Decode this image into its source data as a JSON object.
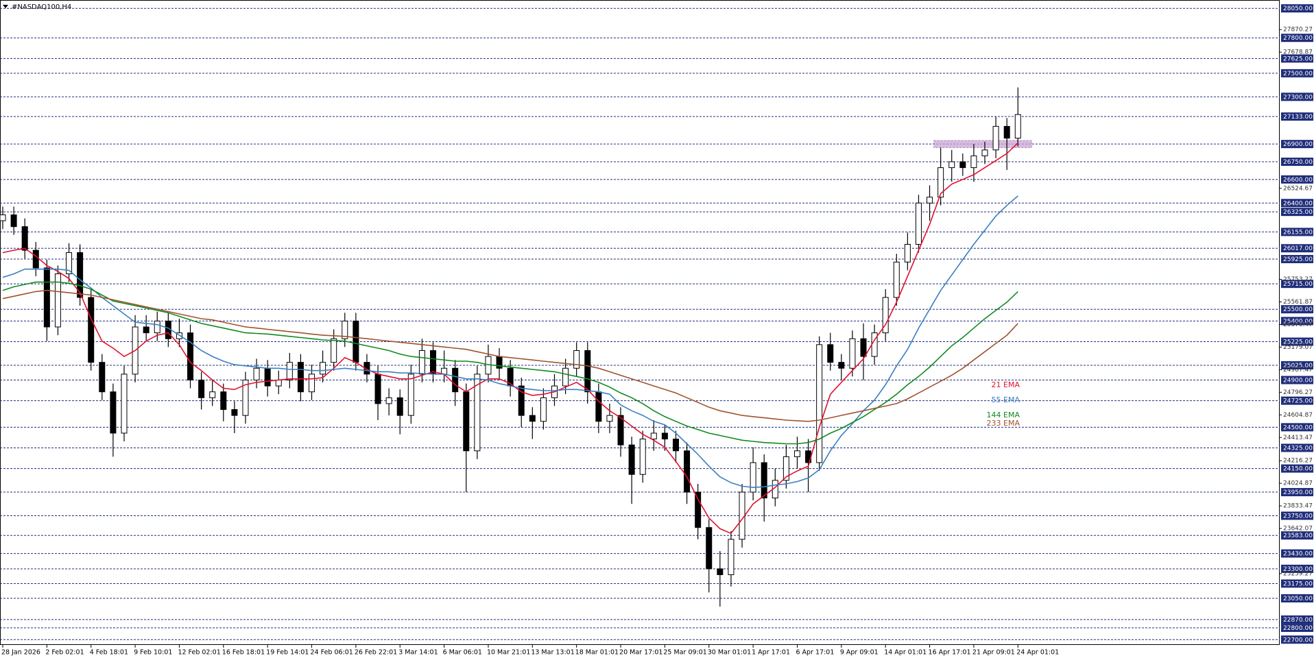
{
  "chart_data": {
    "type": "candlestick",
    "title": "#NASDAQ100,H4",
    "categories": [
      "28 Jan 2026",
      null,
      null,
      null,
      "2 Feb 02:01",
      null,
      null,
      null,
      "4 Feb 18:01",
      null,
      null,
      null,
      "9 Feb 10:01",
      null,
      null,
      null,
      "12 Feb 02:01",
      null,
      null,
      null,
      "16 Feb 18:01",
      null,
      null,
      null,
      "19 Feb 14:01",
      null,
      null,
      null,
      "24 Feb 06:01",
      null,
      null,
      null,
      "26 Feb 22:01",
      null,
      null,
      null,
      "3 Mar 14:01",
      null,
      null,
      null,
      "6 Mar 06:01",
      null,
      null,
      null,
      "10 Mar 21:01",
      null,
      null,
      null,
      "13 Mar 13:01",
      null,
      null,
      null,
      "18 Mar 01:01",
      null,
      null,
      null,
      "20 Mar 17:01",
      null,
      null,
      null,
      "25 Mar 09:01",
      null,
      null,
      null,
      "30 Mar 01:01",
      null,
      null,
      null,
      "1 Apr 17:01",
      null,
      null,
      null,
      "6 Apr 17:01",
      null,
      null,
      null,
      "9 Apr 09:01",
      null,
      null,
      null,
      "14 Apr 01:01",
      null,
      null,
      null,
      "16 Apr 17:01",
      null,
      null,
      null,
      "21 Apr 09:01",
      null,
      null,
      null,
      "24 Apr 01:01"
    ],
    "candles": [
      [
        26250,
        26370,
        26180,
        26300
      ],
      [
        26300,
        26370,
        26130,
        26200
      ],
      [
        26200,
        26270,
        25930,
        26000
      ],
      [
        26000,
        26070,
        25780,
        25850
      ],
      [
        25850,
        25920,
        25230,
        25350
      ],
      [
        25350,
        25870,
        25280,
        25800
      ],
      [
        25800,
        26060,
        25730,
        25980
      ],
      [
        25980,
        26050,
        25530,
        25600
      ],
      [
        25600,
        25670,
        24980,
        25050
      ],
      [
        25050,
        25120,
        24730,
        24800
      ],
      [
        24800,
        24870,
        24250,
        24450
      ],
      [
        24450,
        25020,
        24380,
        24950
      ],
      [
        24950,
        25450,
        24880,
        25350
      ],
      [
        25350,
        25450,
        25230,
        25300
      ],
      [
        25300,
        25480,
        25230,
        25400
      ],
      [
        25400,
        25470,
        25180,
        25250
      ],
      [
        25250,
        25420,
        25180,
        25300
      ],
      [
        25300,
        25370,
        24830,
        24900
      ],
      [
        24900,
        24970,
        24650,
        24750
      ],
      [
        24750,
        24900,
        24680,
        24800
      ],
      [
        24800,
        24870,
        24550,
        24650
      ],
      [
        24650,
        24720,
        24450,
        24600
      ],
      [
        24600,
        24970,
        24530,
        24900
      ],
      [
        24900,
        25080,
        24830,
        25000
      ],
      [
        25000,
        25070,
        24760,
        24850
      ],
      [
        24850,
        24980,
        24780,
        24900
      ],
      [
        24900,
        25130,
        24830,
        25050
      ],
      [
        25050,
        25120,
        24720,
        24800
      ],
      [
        24800,
        25030,
        24730,
        24950
      ],
      [
        24950,
        25150,
        24880,
        25050
      ],
      [
        25050,
        25330,
        24980,
        25250
      ],
      [
        25250,
        25470,
        25180,
        25400
      ],
      [
        25400,
        25470,
        24980,
        25050
      ],
      [
        25050,
        25120,
        24880,
        24950
      ],
      [
        24950,
        25020,
        24560,
        24700
      ],
      [
        24700,
        24830,
        24600,
        24750
      ],
      [
        24750,
        24820,
        24440,
        24600
      ],
      [
        24600,
        25030,
        24530,
        24950
      ],
      [
        24950,
        25250,
        24880,
        25150
      ],
      [
        25150,
        25220,
        24880,
        24950
      ],
      [
        24950,
        25150,
        24880,
        25000
      ],
      [
        25000,
        25070,
        24680,
        24800
      ],
      [
        24800,
        24870,
        23950,
        24300
      ],
      [
        24300,
        25020,
        24230,
        24950
      ],
      [
        24950,
        25200,
        24880,
        25100
      ],
      [
        25100,
        25170,
        24900,
        25000
      ],
      [
        25000,
        25070,
        24760,
        24850
      ],
      [
        24850,
        24920,
        24500,
        24600
      ],
      [
        24600,
        24670,
        24400,
        24550
      ],
      [
        24550,
        24830,
        24480,
        24750
      ],
      [
        24750,
        24950,
        24680,
        24850
      ],
      [
        24850,
        25080,
        24780,
        25000
      ],
      [
        25000,
        25220,
        24930,
        25150
      ],
      [
        25150,
        25220,
        24700,
        24800
      ],
      [
        24800,
        24870,
        24450,
        24550
      ],
      [
        24550,
        24700,
        24450,
        24600
      ],
      [
        24600,
        24670,
        24250,
        24350
      ],
      [
        24350,
        24420,
        23850,
        24100
      ],
      [
        24100,
        24470,
        24030,
        24400
      ],
      [
        24400,
        24560,
        24300,
        24450
      ],
      [
        24450,
        24520,
        24300,
        24400
      ],
      [
        24400,
        24470,
        24200,
        24300
      ],
      [
        24300,
        24370,
        23850,
        23950
      ],
      [
        23950,
        24020,
        23550,
        23650
      ],
      [
        23650,
        23720,
        23100,
        23300
      ],
      [
        23300,
        23450,
        22980,
        23250
      ],
      [
        23250,
        23620,
        23150,
        23550
      ],
      [
        23550,
        24020,
        23480,
        23950
      ],
      [
        23950,
        24330,
        23880,
        24200
      ],
      [
        24200,
        24270,
        23700,
        23900
      ],
      [
        23900,
        24150,
        23830,
        24050
      ],
      [
        24050,
        24350,
        23980,
        24250
      ],
      [
        24250,
        24420,
        24150,
        24300
      ],
      [
        24300,
        24400,
        23950,
        24200
      ],
      [
        24200,
        25270,
        24130,
        25200
      ],
      [
        25200,
        25300,
        24980,
        25050
      ],
      [
        25050,
        25120,
        24900,
        25000
      ],
      [
        25000,
        25320,
        24930,
        25250
      ],
      [
        25250,
        25380,
        24900,
        25100
      ],
      [
        25100,
        25370,
        25030,
        25300
      ],
      [
        25300,
        25670,
        25230,
        25600
      ],
      [
        25600,
        25970,
        25530,
        25900
      ],
      [
        25900,
        26150,
        25830,
        26050
      ],
      [
        26050,
        26470,
        25980,
        26400
      ],
      [
        26400,
        26550,
        26250,
        26450
      ],
      [
        26450,
        26870,
        26380,
        26700
      ],
      [
        26700,
        26850,
        26580,
        26750
      ],
      [
        26750,
        26820,
        26630,
        26700
      ],
      [
        26700,
        26900,
        26580,
        26800
      ],
      [
        26800,
        26920,
        26730,
        26850
      ],
      [
        26850,
        27130,
        26780,
        27050
      ],
      [
        27050,
        27120,
        26680,
        26950
      ],
      [
        26950,
        27380,
        26880,
        27150
      ]
    ],
    "up_color": "#ffffff",
    "down_color": "#000000",
    "wick_color": "#000000",
    "series": [
      {
        "name": "21 EMA",
        "color": "#e0102f",
        "values": [
          25980,
          26000,
          26015,
          25950,
          25870,
          25820,
          25760,
          25640,
          25420,
          25230,
          25170,
          25100,
          25150,
          25230,
          25280,
          25300,
          25200,
          25050,
          24980,
          24900,
          24830,
          24820,
          24860,
          24880,
          24890,
          24900,
          24910,
          24910,
          24910,
          24920,
          25000,
          25090,
          25050,
          24990,
          24950,
          24930,
          24910,
          24910,
          24940,
          24970,
          24950,
          24860,
          24800,
          24860,
          24910,
          24910,
          24870,
          24800,
          24770,
          24780,
          24800,
          24840,
          24880,
          24820,
          24720,
          24640,
          24580,
          24510,
          24440,
          24390,
          24330,
          24210,
          24080,
          23890,
          23730,
          23640,
          23600,
          23720,
          23850,
          23920,
          23990,
          24080,
          24130,
          24170,
          24500,
          24780,
          24880,
          24980,
          25080,
          25240,
          25370,
          25560,
          25780,
          26000,
          26220,
          26480,
          26560,
          26600,
          26640,
          26700,
          26760,
          26820,
          26910
        ]
      },
      {
        "name": "55 EMA",
        "color": "#3a7fc0",
        "values": [
          25770,
          25800,
          25840,
          25840,
          25840,
          25840,
          25830,
          25750,
          25680,
          25600,
          25530,
          25460,
          25390,
          25380,
          25370,
          25340,
          25280,
          25220,
          25150,
          25100,
          25060,
          25030,
          25020,
          25010,
          25000,
          25000,
          24990,
          24990,
          24980,
          24980,
          24990,
          25000,
          24990,
          24980,
          24970,
          24970,
          24960,
          24960,
          24955,
          24950,
          24950,
          24930,
          24910,
          24910,
          24900,
          24870,
          24850,
          24830,
          24820,
          24810,
          24810,
          24820,
          24820,
          24810,
          24800,
          24780,
          24690,
          24640,
          24600,
          24550,
          24520,
          24450,
          24360,
          24270,
          24170,
          24080,
          24030,
          24000,
          23990,
          23995,
          24010,
          24020,
          24040,
          24070,
          24140,
          24300,
          24430,
          24530,
          24640,
          24730,
          24860,
          25020,
          25160,
          25340,
          25500,
          25660,
          25790,
          25920,
          26050,
          26170,
          26290,
          26380,
          26460
        ]
      },
      {
        "name": "144 EMA",
        "color": "#0f8a1f",
        "values": [
          25660,
          25690,
          25710,
          25730,
          25730,
          25730,
          25720,
          25700,
          25670,
          25620,
          25570,
          25550,
          25530,
          25510,
          25490,
          25470,
          25440,
          25410,
          25380,
          25360,
          25340,
          25320,
          25300,
          25295,
          25290,
          25280,
          25270,
          25260,
          25250,
          25240,
          25235,
          25230,
          25210,
          25190,
          25170,
          25150,
          25120,
          25100,
          25090,
          25080,
          25070,
          25060,
          25060,
          25050,
          25030,
          25020,
          25010,
          25000,
          24990,
          24980,
          24970,
          24950,
          24930,
          24910,
          24880,
          24840,
          24790,
          24750,
          24700,
          24640,
          24590,
          24550,
          24510,
          24480,
          24450,
          24430,
          24410,
          24390,
          24380,
          24370,
          24365,
          24360,
          24360,
          24370,
          24400,
          24450,
          24490,
          24540,
          24590,
          24650,
          24710,
          24780,
          24860,
          24930,
          25010,
          25100,
          25190,
          25260,
          25340,
          25420,
          25490,
          25560,
          25650
        ]
      },
      {
        "name": "233 EMA",
        "color": "#a0522d",
        "values": [
          25590,
          25610,
          25630,
          25650,
          25660,
          25650,
          25640,
          25630,
          25620,
          25600,
          25580,
          25560,
          25540,
          25520,
          25500,
          25480,
          25460,
          25440,
          25420,
          25410,
          25390,
          25370,
          25350,
          25340,
          25330,
          25320,
          25310,
          25300,
          25290,
          25280,
          25275,
          25270,
          25260,
          25250,
          25240,
          25230,
          25220,
          25210,
          25200,
          25190,
          25180,
          25170,
          25160,
          25140,
          25120,
          25100,
          25090,
          25080,
          25070,
          25060,
          25050,
          25040,
          25030,
          25020,
          25000,
          24970,
          24940,
          24910,
          24880,
          24850,
          24820,
          24790,
          24750,
          24710,
          24670,
          24640,
          24620,
          24600,
          24590,
          24580,
          24570,
          24560,
          24555,
          24550,
          24560,
          24580,
          24600,
          24620,
          24640,
          24660,
          24680,
          24700,
          24740,
          24790,
          24840,
          24890,
          24940,
          25000,
          25070,
          25140,
          25210,
          25280,
          25380
        ]
      }
    ],
    "zone": {
      "low": 26870,
      "high": 26930,
      "color": "#c9a6d6"
    },
    "ylim": [
      22655,
      28115
    ],
    "levels": [
      {
        "value": 28050,
        "label": "28050.00"
      },
      {
        "value": 27800,
        "label": "27800.00"
      },
      {
        "value": 27625,
        "label": "27625.00"
      },
      {
        "value": 27500,
        "label": "27500.00"
      },
      {
        "value": 27300,
        "label": "27300.00"
      },
      {
        "value": 27133,
        "label": "27133.00"
      },
      {
        "value": 26900,
        "label": "26900.00"
      },
      {
        "value": 26750,
        "label": "26750.00"
      },
      {
        "value": 26600,
        "label": "26600.00"
      },
      {
        "value": 26400,
        "label": "26400.00"
      },
      {
        "value": 26325,
        "label": "26325.00"
      },
      {
        "value": 26155,
        "label": "26155.00"
      },
      {
        "value": 26017,
        "label": "26017.00"
      },
      {
        "value": 25925,
        "label": "25925.00"
      },
      {
        "value": 25715,
        "label": "25715.00"
      },
      {
        "value": 25500,
        "label": "25500.00"
      },
      {
        "value": 25400,
        "label": "25400.00"
      },
      {
        "value": 25225,
        "label": "25225.00"
      },
      {
        "value": 25025,
        "label": "25025.00"
      },
      {
        "value": 24900,
        "label": "24900.00"
      },
      {
        "value": 24725,
        "label": "24725.00"
      },
      {
        "value": 24500,
        "label": "24500.00"
      },
      {
        "value": 24325,
        "label": "24325.00"
      },
      {
        "value": 24150,
        "label": "24150.00"
      },
      {
        "value": 23950,
        "label": "23950.00"
      },
      {
        "value": 23750,
        "label": "23750.00"
      },
      {
        "value": 23583,
        "label": "23583.00"
      },
      {
        "value": 23430,
        "label": "23430.00"
      },
      {
        "value": 23300,
        "label": "23300.00"
      },
      {
        "value": 23175,
        "label": "23175.00"
      },
      {
        "value": 23050,
        "label": "23050.00"
      },
      {
        "value": 22870,
        "label": "22870.00"
      },
      {
        "value": 22800,
        "label": "22800.00"
      },
      {
        "value": 22700,
        "label": "22700.00"
      }
    ],
    "level_color": "#1f2d7a",
    "yticks": [
      27870.27,
      27678.87,
      26524.67,
      25753.27,
      25561.87,
      25370.47,
      25179.07,
      24987.47,
      24796.27,
      24604.87,
      24413.47,
      24216.27,
      24024.87,
      23833.47,
      23642.07,
      23259.27
    ]
  }
}
